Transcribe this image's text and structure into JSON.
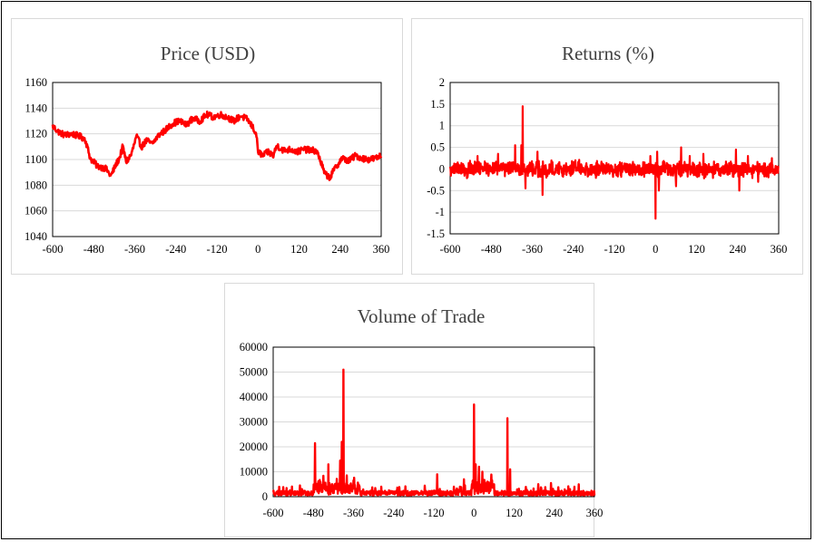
{
  "chart_data": [
    {
      "id": "price",
      "type": "line",
      "title": "Price (USD)",
      "xlabel": "",
      "ylabel": "",
      "xlim": [
        -600,
        360
      ],
      "ylim": [
        1040,
        1160
      ],
      "x_ticks": [
        -600,
        -480,
        -360,
        -240,
        -120,
        0,
        120,
        240,
        360
      ],
      "y_ticks": [
        1040,
        1060,
        1080,
        1100,
        1120,
        1140,
        1160
      ],
      "series_color": "#ff0000",
      "noise": 2.5,
      "series": [
        {
          "points": [
            [
              -600,
              1126
            ],
            [
              -585,
              1122
            ],
            [
              -565,
              1119
            ],
            [
              -545,
              1120
            ],
            [
              -520,
              1118
            ],
            [
              -505,
              1116
            ],
            [
              -490,
              1101
            ],
            [
              -470,
              1095
            ],
            [
              -445,
              1093
            ],
            [
              -430,
              1087
            ],
            [
              -415,
              1096
            ],
            [
              -405,
              1101
            ],
            [
              -395,
              1110
            ],
            [
              -385,
              1098
            ],
            [
              -370,
              1104
            ],
            [
              -355,
              1118
            ],
            [
              -340,
              1110
            ],
            [
              -325,
              1115
            ],
            [
              -310,
              1112
            ],
            [
              -290,
              1119
            ],
            [
              -270,
              1123
            ],
            [
              -250,
              1128
            ],
            [
              -230,
              1130
            ],
            [
              -210,
              1127
            ],
            [
              -190,
              1132
            ],
            [
              -170,
              1130
            ],
            [
              -150,
              1135
            ],
            [
              -130,
              1133
            ],
            [
              -110,
              1135
            ],
            [
              -90,
              1133
            ],
            [
              -70,
              1130
            ],
            [
              -50,
              1134
            ],
            [
              -30,
              1131
            ],
            [
              -15,
              1125
            ],
            [
              -5,
              1120
            ],
            [
              0,
              1106
            ],
            [
              15,
              1103
            ],
            [
              30,
              1106
            ],
            [
              45,
              1103
            ],
            [
              55,
              1111
            ],
            [
              75,
              1107
            ],
            [
              95,
              1108
            ],
            [
              115,
              1106
            ],
            [
              135,
              1108
            ],
            [
              155,
              1107
            ],
            [
              170,
              1107
            ],
            [
              180,
              1101
            ],
            [
              195,
              1089
            ],
            [
              210,
              1086
            ],
            [
              225,
              1093
            ],
            [
              245,
              1101
            ],
            [
              265,
              1099
            ],
            [
              285,
              1103
            ],
            [
              305,
              1101
            ],
            [
              325,
              1100
            ],
            [
              345,
              1101
            ],
            [
              360,
              1103
            ]
          ]
        }
      ]
    },
    {
      "id": "returns",
      "type": "line",
      "title": "Returns (%)",
      "xlabel": "",
      "ylabel": "",
      "xlim": [
        -600,
        360
      ],
      "ylim": [
        -1.5,
        2
      ],
      "x_ticks": [
        -600,
        -480,
        -360,
        -240,
        -120,
        0,
        120,
        240,
        360
      ],
      "y_ticks": [
        -1.5,
        -1,
        -0.5,
        0,
        0.5,
        1,
        1.5,
        2
      ],
      "series_color": "#ff0000",
      "noise_amplitude": 0.15,
      "spikes": [
        [
          -388,
          1.45
        ],
        [
          -392,
          0.55
        ],
        [
          -410,
          0.55
        ],
        [
          -380,
          -0.45
        ],
        [
          -330,
          -0.6
        ],
        [
          -345,
          0.4
        ],
        [
          -460,
          0.35
        ],
        [
          -520,
          0.3
        ],
        [
          0,
          -1.15
        ],
        [
          5,
          0.4
        ],
        [
          10,
          -0.5
        ],
        [
          -15,
          0.3
        ],
        [
          75,
          0.5
        ],
        [
          60,
          -0.4
        ],
        [
          100,
          0.3
        ],
        [
          140,
          0.35
        ],
        [
          235,
          0.45
        ],
        [
          245,
          -0.5
        ],
        [
          270,
          0.3
        ],
        [
          300,
          -0.3
        ],
        [
          340,
          0.25
        ]
      ]
    },
    {
      "id": "volume",
      "type": "line",
      "title": "Volume of Trade",
      "xlabel": "",
      "ylabel": "",
      "xlim": [
        -600,
        360
      ],
      "ylim": [
        0,
        60000
      ],
      "x_ticks": [
        -600,
        -480,
        -360,
        -240,
        -120,
        0,
        120,
        240,
        360
      ],
      "y_ticks": [
        0,
        10000,
        20000,
        30000,
        40000,
        50000,
        60000
      ],
      "series_color": "#ff0000",
      "base_level": 1200,
      "spikes": [
        [
          -390,
          51000
        ],
        [
          -475,
          21500
        ],
        [
          -400,
          14500
        ],
        [
          -435,
          13000
        ],
        [
          -395,
          22000
        ],
        [
          -380,
          8500
        ],
        [
          -360,
          6500
        ],
        [
          -110,
          9000
        ],
        [
          -60,
          4000
        ],
        [
          -30,
          7000
        ],
        [
          0,
          37000
        ],
        [
          5,
          13000
        ],
        [
          15,
          12000
        ],
        [
          25,
          10000
        ],
        [
          40,
          6000
        ],
        [
          100,
          31500
        ],
        [
          108,
          11000
        ],
        [
          60,
          5000
        ],
        [
          230,
          5500
        ],
        [
          300,
          4000
        ],
        [
          -560,
          3500
        ],
        [
          -520,
          4500
        ]
      ]
    }
  ]
}
